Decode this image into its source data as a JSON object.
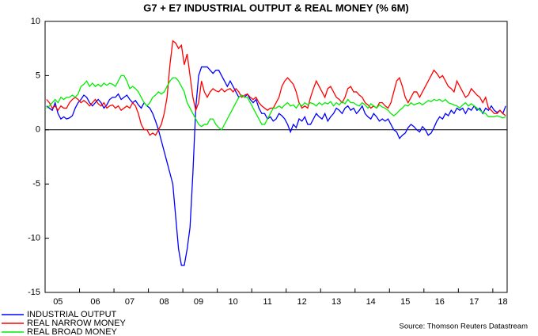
{
  "chart_data": {
    "type": "line",
    "title": "G7 + E7 INDUSTRIAL OUTPUT & REAL MONEY (% 6M)",
    "source": "Source: Thomson Reuters Datastream",
    "categories": [
      null,
      null,
      null,
      null,
      "05",
      null,
      null,
      null,
      null,
      null,
      null,
      null,
      null,
      null,
      null,
      null,
      null,
      "06",
      null,
      null,
      null,
      null,
      null,
      null,
      null,
      null,
      null,
      null,
      null,
      "07",
      null,
      null,
      null,
      null,
      null,
      null,
      null,
      null,
      null,
      null,
      null,
      "08",
      null,
      null,
      null,
      null,
      null,
      null,
      null,
      null,
      null,
      null,
      null,
      "09",
      null,
      null,
      null,
      null,
      null,
      null,
      null,
      null,
      null,
      null,
      null,
      "10",
      null,
      null,
      null,
      null,
      null,
      null,
      null,
      null,
      null,
      null,
      null,
      "11",
      null,
      null,
      null,
      null,
      null,
      null,
      null,
      null,
      null,
      null,
      null,
      "12",
      null,
      null,
      null,
      null,
      null,
      null,
      null,
      null,
      null,
      null,
      null,
      "13",
      null,
      null,
      null,
      null,
      null,
      null,
      null,
      null,
      null,
      null,
      null,
      "14",
      null,
      null,
      null,
      null,
      null,
      null,
      null,
      null,
      null,
      null,
      null,
      "15",
      null,
      null,
      null,
      null,
      null,
      null,
      null,
      null,
      null,
      null,
      null,
      "16",
      null,
      null,
      null,
      null,
      null,
      null,
      null,
      null,
      null,
      null,
      null,
      "17",
      null,
      null,
      null,
      null,
      null,
      null,
      null,
      null,
      null,
      "18",
      null
    ],
    "series": [
      {
        "name": "INDUSTRIAL OUTPUT",
        "color": "#0000ff",
        "values": [
          2.2,
          2.0,
          1.8,
          2.5,
          1.5,
          1.0,
          1.2,
          1.0,
          1.1,
          1.3,
          2.0,
          2.5,
          2.8,
          3.2,
          3.0,
          2.5,
          2.2,
          2.5,
          2.8,
          2.5,
          2.0,
          2.3,
          2.8,
          3.0,
          3.0,
          3.3,
          2.8,
          3.0,
          3.2,
          2.8,
          2.5,
          2.7,
          2.3,
          2.0,
          2.5,
          2.2,
          2.0,
          1.5,
          0.8,
          0.0,
          -1.0,
          -2.0,
          -3.0,
          -4.0,
          -5.0,
          -8.0,
          -11.0,
          -12.5,
          -12.5,
          -11,
          -9,
          -4,
          2,
          5,
          5.8,
          5.8,
          5.8,
          5.5,
          5.2,
          5.5,
          5.5,
          5.0,
          4.5,
          4.0,
          4.5,
          4.0,
          3.5,
          3.0,
          3.2,
          3.0,
          3.3,
          2.8,
          2.5,
          2.8,
          2.0,
          1.5,
          1.5,
          1.0,
          1.2,
          0.8,
          1.0,
          1.5,
          1.3,
          1.0,
          0.5,
          -0.2,
          0.5,
          0.2,
          1.0,
          0.8,
          1.2,
          0.5,
          0.5,
          1.0,
          1.5,
          1.2,
          1.0,
          1.5,
          0.8,
          1.2,
          1.5,
          2.0,
          1.8,
          1.5,
          2.0,
          2.2,
          1.8,
          2.0,
          1.5,
          1.8,
          2.2,
          1.5,
          1.2,
          1.0,
          1.5,
          1.2,
          0.8,
          1.0,
          0.8,
          1.0,
          0.5,
          0.0,
          -0.2,
          -0.8,
          -0.5,
          -0.3,
          0.2,
          0.5,
          0.3,
          0.0,
          -0.2,
          0.3,
          0.0,
          -0.5,
          -0.3,
          0.2,
          0.8,
          1.2,
          1.0,
          1.5,
          1.3,
          1.8,
          1.5,
          2.0,
          1.8,
          2.0,
          1.5,
          2.0,
          1.8,
          2.2,
          1.8,
          2.0,
          1.5,
          2.0,
          1.8,
          2.2,
          1.8,
          1.6,
          1.8,
          1.5,
          2.2
        ]
      },
      {
        "name": "REAL NARROW MONEY",
        "color": "#ff0000",
        "values": [
          2.8,
          2.5,
          2.0,
          2.2,
          1.8,
          2.2,
          2.0,
          2.0,
          2.5,
          2.8,
          3.0,
          2.8,
          2.5,
          2.7,
          2.5,
          2.2,
          2.5,
          2.8,
          2.4,
          2.2,
          2.5,
          2.0,
          2.2,
          2.3,
          2.0,
          2.2,
          1.8,
          2.0,
          2.2,
          2.0,
          2.5,
          2.2,
          1.5,
          0.5,
          0.0,
          0.0,
          -0.5,
          -0.3,
          -0.5,
          0.0,
          0.5,
          1.5,
          3.0,
          6.0,
          8.2,
          8.0,
          7.5,
          7.8,
          6.0,
          7.0,
          5.0,
          3.0,
          1.8,
          2.5,
          4.5,
          3.5,
          3.0,
          3.5,
          3.8,
          3.6,
          3.5,
          3.8,
          3.5,
          3.7,
          3.8,
          3.5,
          3.8,
          3.5,
          3.0,
          3.2,
          3.3,
          3.0,
          2.8,
          3.0,
          2.5,
          2.2,
          2.0,
          1.8,
          2.0,
          2.0,
          2.5,
          3.0,
          4.0,
          4.5,
          4.8,
          4.5,
          4.2,
          3.5,
          2.5,
          2.0,
          2.2,
          2.0,
          3.0,
          3.8,
          4.5,
          4.0,
          3.5,
          3.0,
          3.8,
          4.0,
          3.5,
          3.0,
          2.8,
          2.5,
          3.0,
          3.8,
          4.0,
          3.5,
          3.5,
          3.2,
          3.0,
          2.5,
          2.3,
          2.0,
          2.2,
          2.0,
          2.5,
          2.5,
          2.2,
          2.0,
          2.5,
          3.5,
          4.5,
          4.8,
          4.0,
          3.0,
          2.5,
          3.0,
          3.5,
          3.5,
          3.0,
          3.5,
          4.0,
          4.5,
          5.0,
          5.5,
          5.2,
          4.8,
          5.0,
          4.5,
          4.0,
          3.8,
          3.5,
          4.5,
          4.0,
          3.5,
          3.0,
          3.2,
          3.8,
          3.5,
          3.2,
          3.0,
          2.5,
          3.0,
          2.0,
          1.8,
          1.5,
          1.5,
          1.8,
          1.5,
          1.3
        ]
      },
      {
        "name": "REAL BROAD MONEY",
        "color": "#00ee00",
        "values": [
          2.0,
          2.2,
          2.5,
          2.8,
          2.5,
          3.0,
          2.8,
          3.0,
          3.0,
          3.2,
          3.0,
          3.3,
          4.0,
          4.2,
          4.5,
          4.0,
          4.3,
          4.0,
          4.2,
          4.0,
          4.3,
          4.1,
          4.3,
          4.2,
          4.0,
          4.5,
          5.0,
          5.0,
          4.5,
          3.8,
          4.0,
          3.8,
          3.5,
          3.0,
          2.5,
          2.2,
          2.5,
          3.0,
          3.2,
          3.5,
          3.3,
          3.5,
          4.0,
          4.5,
          4.8,
          4.8,
          4.5,
          4.0,
          3.5,
          2.5,
          2.0,
          1.5,
          1.0,
          0.5,
          0.3,
          0.5,
          0.5,
          1.0,
          1.0,
          0.5,
          0.2,
          0.0,
          0.5,
          1.0,
          1.5,
          2.0,
          2.5,
          3.0,
          3.2,
          3.0,
          3.0,
          2.5,
          2.0,
          1.5,
          1.0,
          0.5,
          0.5,
          1.0,
          1.5,
          2.0,
          2.0,
          2.2,
          2.0,
          2.3,
          2.5,
          2.2,
          2.3,
          2.0,
          2.4,
          2.2,
          2.5,
          2.3,
          2.5,
          2.4,
          2.2,
          2.5,
          2.3,
          2.5,
          2.4,
          2.6,
          2.2,
          2.5,
          2.3,
          2.6,
          2.4,
          2.8,
          2.5,
          2.5,
          2.3,
          2.2,
          2.5,
          2.3,
          2.0,
          2.4,
          2.2,
          2.0,
          2.3,
          2.1,
          2.0,
          1.8,
          1.5,
          1.3,
          1.5,
          1.8,
          2.0,
          2.3,
          2.2,
          2.5,
          2.3,
          2.4,
          2.5,
          2.3,
          2.5,
          2.7,
          2.6,
          2.8,
          2.7,
          2.8,
          2.6,
          2.8,
          2.5,
          2.4,
          2.3,
          2.2,
          2.0,
          2.3,
          2.5,
          2.2,
          2.4,
          2.2,
          2.0,
          1.8,
          1.6,
          1.5,
          1.2,
          1.2,
          1.2,
          1.3,
          1.2,
          1.1,
          1.2
        ]
      }
    ],
    "ylim": [
      -15,
      10
    ],
    "yticks": [
      -15,
      -10,
      -5,
      0,
      5,
      10
    ],
    "zero_line": true,
    "legend": "bottom-left"
  }
}
